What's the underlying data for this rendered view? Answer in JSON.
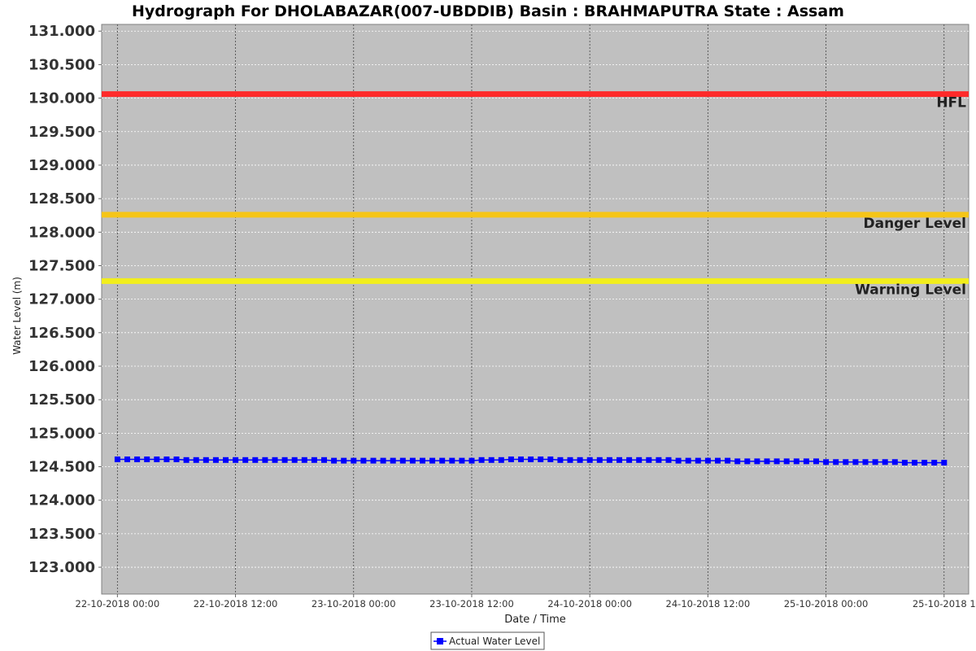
{
  "chart_data": {
    "type": "line",
    "title": "Hydrograph For DHOLABAZAR(007-UBDDIB) Basin : BRAHMAPUTRA State : Assam",
    "xlabel": "Date / Time",
    "ylabel": "Water Level (m)",
    "ylim": [
      122.6,
      131.1
    ],
    "yticks": [
      "123.000",
      "123.500",
      "124.000",
      "124.500",
      "125.000",
      "125.500",
      "126.000",
      "126.500",
      "127.000",
      "127.500",
      "128.000",
      "128.500",
      "129.000",
      "129.500",
      "130.000",
      "130.500",
      "131.000"
    ],
    "xlim_hours": [
      -1.6,
      86.5
    ],
    "xticks": [
      {
        "label": "22-10-2018 00:00",
        "hour": 0
      },
      {
        "label": "22-10-2018 12:00",
        "hour": 12
      },
      {
        "label": "23-10-2018 00:00",
        "hour": 24
      },
      {
        "label": "23-10-2018 12:00",
        "hour": 36
      },
      {
        "label": "24-10-2018 00:00",
        "hour": 48
      },
      {
        "label": "24-10-2018 12:00",
        "hour": 60
      },
      {
        "label": "25-10-2018 00:00",
        "hour": 72
      },
      {
        "label": "25-10-2018 1",
        "hour": 84
      }
    ],
    "grid": true,
    "legend_position": "bottom-center",
    "reference_lines": [
      {
        "name": "HFL",
        "value": 130.06,
        "color": "#ff2a2a"
      },
      {
        "name": "Danger Level",
        "value": 128.26,
        "color": "#f5c518"
      },
      {
        "name": "Warning Level",
        "value": 127.27,
        "color": "#f2ee1c"
      }
    ],
    "series": [
      {
        "name": "Actual Water Level",
        "color": "#0000ff",
        "x_start_hour": 0,
        "x_step_hours": 1,
        "values": [
          124.61,
          124.61,
          124.61,
          124.61,
          124.61,
          124.61,
          124.61,
          124.6,
          124.6,
          124.6,
          124.6,
          124.6,
          124.6,
          124.6,
          124.6,
          124.6,
          124.6,
          124.6,
          124.6,
          124.6,
          124.6,
          124.6,
          124.59,
          124.59,
          124.59,
          124.59,
          124.59,
          124.59,
          124.59,
          124.59,
          124.59,
          124.59,
          124.59,
          124.59,
          124.59,
          124.59,
          124.59,
          124.6,
          124.6,
          124.6,
          124.61,
          124.61,
          124.61,
          124.61,
          124.61,
          124.6,
          124.6,
          124.6,
          124.6,
          124.6,
          124.6,
          124.6,
          124.6,
          124.6,
          124.6,
          124.6,
          124.6,
          124.59,
          124.59,
          124.59,
          124.59,
          124.59,
          124.59,
          124.58,
          124.58,
          124.58,
          124.58,
          124.58,
          124.58,
          124.58,
          124.58,
          124.58,
          124.57,
          124.57,
          124.57,
          124.57,
          124.57,
          124.57,
          124.57,
          124.57,
          124.56,
          124.56,
          124.56,
          124.56,
          124.56
        ]
      }
    ]
  }
}
